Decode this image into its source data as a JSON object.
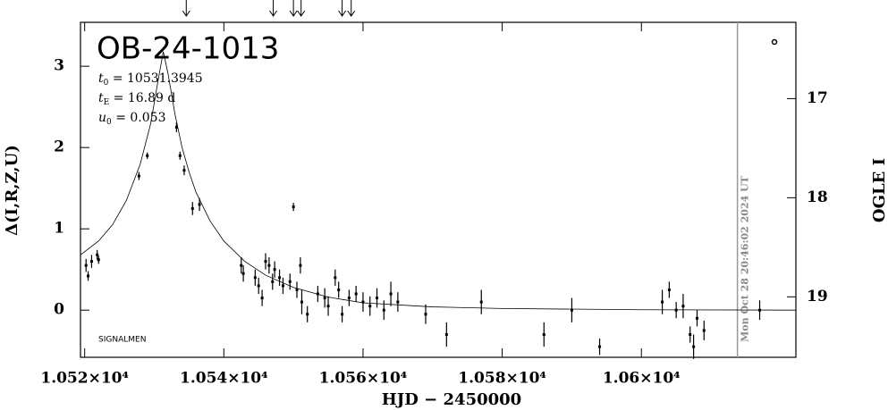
{
  "chart_data": {
    "type": "errorbar",
    "title": "OB-24-1013",
    "params": [
      {
        "symbol": "t",
        "sub": "0",
        "text": " = 10531.3945"
      },
      {
        "symbol": "t",
        "sub": "E",
        "text": " = 16.89 d"
      },
      {
        "symbol": "u",
        "sub": "0",
        "text": " = 0.053"
      }
    ],
    "note": "SIGNALMEN",
    "timestamp": "Mon Oct 28 20:46:02 2024 UT",
    "xlabel": "HJD − 2450000",
    "ylabel": "Δ(I,R,Z,U)",
    "y2label": "OGLE I",
    "xlim": [
      10519.4,
      10622.2
    ],
    "ylim": [
      -0.58,
      3.54
    ],
    "y2lim": [
      19.61,
      16.23
    ],
    "xticks": [
      {
        "value": 10520,
        "label": "1.052×10⁴"
      },
      {
        "value": 10540,
        "label": "1.054×10⁴"
      },
      {
        "value": 10560,
        "label": "1.056×10⁴"
      },
      {
        "value": 10580,
        "label": "1.058×10⁴"
      },
      {
        "value": 10600,
        "label": "1.06×10⁴"
      }
    ],
    "yticks": [
      0,
      1,
      2,
      3
    ],
    "y2ticks": [
      17,
      18,
      19
    ],
    "timestamp_x": 10613.8,
    "arrows": [
      10534.6,
      10547.1,
      10550.0,
      10551.1,
      10557.0,
      10558.3
    ],
    "color": "#000000",
    "model": {
      "x": [
        10519.4,
        10522,
        10524,
        10526,
        10528,
        10529.5,
        10530.5,
        10531.3,
        10532,
        10533,
        10534,
        10535,
        10536,
        10538,
        10540,
        10543,
        10546,
        10550,
        10555,
        10560,
        10570,
        10580,
        10600,
        10622.2
      ],
      "values": [
        0.68,
        0.85,
        1.05,
        1.35,
        1.8,
        2.3,
        2.8,
        3.18,
        2.9,
        2.4,
        2.0,
        1.7,
        1.45,
        1.1,
        0.85,
        0.6,
        0.43,
        0.28,
        0.16,
        0.09,
        0.04,
        0.02,
        0.005,
        0.0
      ]
    },
    "x": [
      10520.2,
      10520.5,
      10521,
      10521.8,
      10522,
      10527.8,
      10529,
      10533.2,
      10533.7,
      10534.3,
      10535.5,
      10536.5,
      10542.5,
      10542.8,
      10544.5,
      10545,
      10545.5,
      10546,
      10546.5,
      10547,
      10547.3,
      10548,
      10548.5,
      10550,
      10549.5,
      10550.5,
      10551,
      10551.2,
      10552,
      10553.5,
      10554.5,
      10555,
      10556,
      10556.5,
      10557,
      10558,
      10559,
      10560,
      10561,
      10562,
      10563,
      10564,
      10565,
      10569,
      10572,
      10577,
      10586,
      10590,
      10594,
      10603,
      10604,
      10605,
      10606,
      10607,
      10607.5,
      10608,
      10609,
      10617
    ],
    "values": [
      0.55,
      0.42,
      0.6,
      0.68,
      0.62,
      1.65,
      1.9,
      2.25,
      1.9,
      1.72,
      1.25,
      1.3,
      0.55,
      0.45,
      0.4,
      0.3,
      0.15,
      0.6,
      0.55,
      0.35,
      0.5,
      0.4,
      0.3,
      1.27,
      0.35,
      0.25,
      0.55,
      0.1,
      -0.05,
      0.2,
      0.15,
      0.05,
      0.4,
      0.25,
      -0.05,
      0.15,
      0.2,
      0.1,
      0.05,
      0.15,
      0.0,
      0.2,
      0.1,
      -0.05,
      -0.3,
      0.1,
      -0.3,
      0.0,
      -0.45,
      0.1,
      0.25,
      0.0,
      0.05,
      -0.3,
      -0.45,
      -0.1,
      -0.25,
      0.0
    ],
    "errors": [
      0.08,
      0.06,
      0.08,
      0.06,
      0.05,
      0.05,
      0.04,
      0.06,
      0.05,
      0.06,
      0.08,
      0.08,
      0.1,
      0.1,
      0.1,
      0.1,
      0.1,
      0.1,
      0.1,
      0.1,
      0.1,
      0.1,
      0.1,
      0.05,
      0.1,
      0.1,
      0.1,
      0.15,
      0.1,
      0.1,
      0.12,
      0.12,
      0.1,
      0.1,
      0.1,
      0.1,
      0.1,
      0.12,
      0.12,
      0.12,
      0.12,
      0.15,
      0.12,
      0.12,
      0.15,
      0.15,
      0.15,
      0.15,
      0.1,
      0.15,
      0.1,
      0.1,
      0.15,
      0.1,
      0.15,
      0.1,
      0.12,
      0.12
    ]
  }
}
